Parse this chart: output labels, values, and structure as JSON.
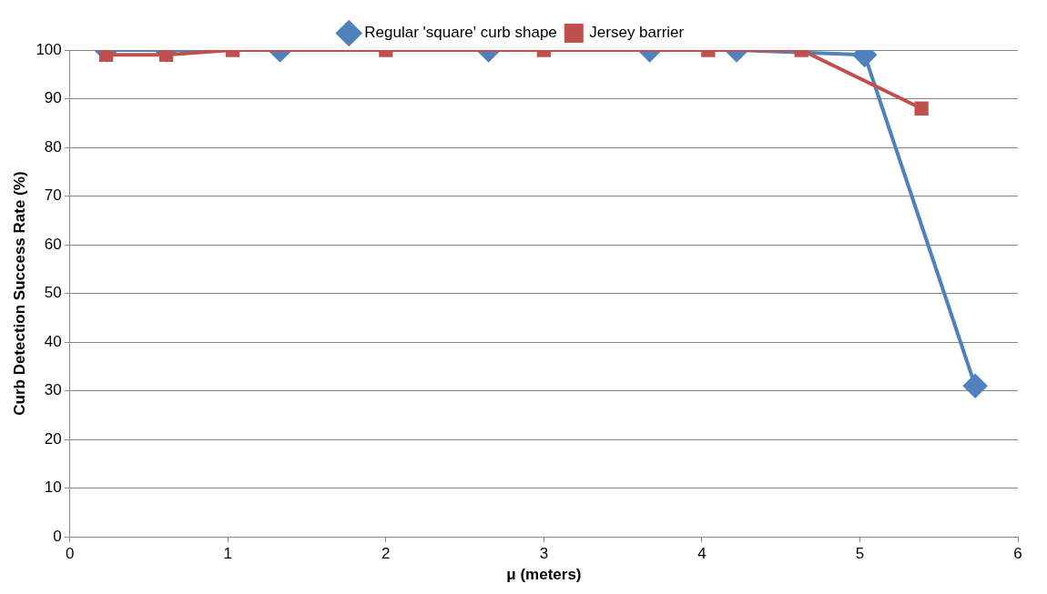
{
  "chart_data": {
    "type": "line",
    "xlabel": "μ (meters)",
    "ylabel": "Curb Detection Success Rate (%)",
    "xlim": [
      0,
      6
    ],
    "xticks": [
      0,
      1,
      2,
      3,
      4,
      5,
      6
    ],
    "ylim": [
      0,
      100
    ],
    "yticks": [
      0,
      10,
      20,
      30,
      40,
      50,
      60,
      70,
      80,
      90,
      100
    ],
    "grid": "y",
    "legend": "top",
    "series": [
      {
        "name": "Regular 'square' curb shape",
        "color": "#4f81bd",
        "marker": "diamond",
        "x": [
          0.23,
          0.61,
          1.33,
          2.65,
          3.67,
          4.22,
          5.03,
          5.73
        ],
        "values": [
          100,
          100,
          100,
          100,
          100,
          100,
          99,
          31
        ]
      },
      {
        "name": "Jersey barrier",
        "color": "#c0504d",
        "marker": "square",
        "x": [
          0.23,
          0.61,
          1.03,
          2.0,
          3.0,
          4.04,
          4.63,
          5.39
        ],
        "values": [
          99,
          99,
          100,
          100,
          100,
          100,
          100,
          88
        ]
      }
    ]
  }
}
